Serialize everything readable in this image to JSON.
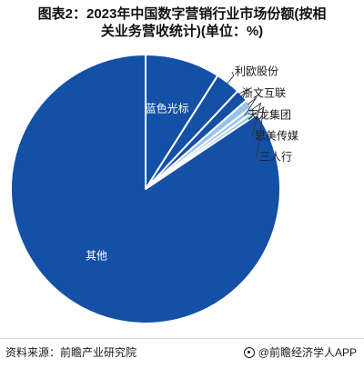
{
  "title_line1": "图表2：2023年中国数字营销行业市场份额(按相",
  "title_line2": "关业务营收统计)(单位：%)",
  "source": "资料来源：前瞻产业研究院",
  "brand": "@前瞻经济学人APP",
  "colors": {
    "main": "#1450a6",
    "light": "#98c3ea",
    "leader": "#333333",
    "label_inside": "#ffffff",
    "label_outside": "#1a1a1a",
    "edge": "#ffffff"
  },
  "chart_data": {
    "type": "pie",
    "title": "图表2：2023年中国数字营销行业市场份额(按相关业务营收统计)(单位：%)",
    "start_angle": "12 o'clock, clockwise",
    "slices": [
      {
        "label": "蓝色光标",
        "value": 9.0,
        "color": "#1450a6",
        "label_pos": "inside"
      },
      {
        "label": "利欧股份",
        "value": 3.0,
        "color": "#1450a6",
        "label_pos": "outside"
      },
      {
        "label": "浙文互联",
        "value": 1.5,
        "color": "#1450a6",
        "label_pos": "outside"
      },
      {
        "label": "天龙集团",
        "value": 1.0,
        "color": "#98c3ea",
        "label_pos": "outside"
      },
      {
        "label": "思美传媒",
        "value": 0.6,
        "color": "#98c3ea",
        "label_pos": "outside"
      },
      {
        "label": "三人行",
        "value": 0.5,
        "color": "#98c3ea",
        "label_pos": "outside"
      },
      {
        "label": "其他",
        "value": 84.4,
        "color": "#1450a6",
        "label_pos": "inside"
      }
    ]
  }
}
